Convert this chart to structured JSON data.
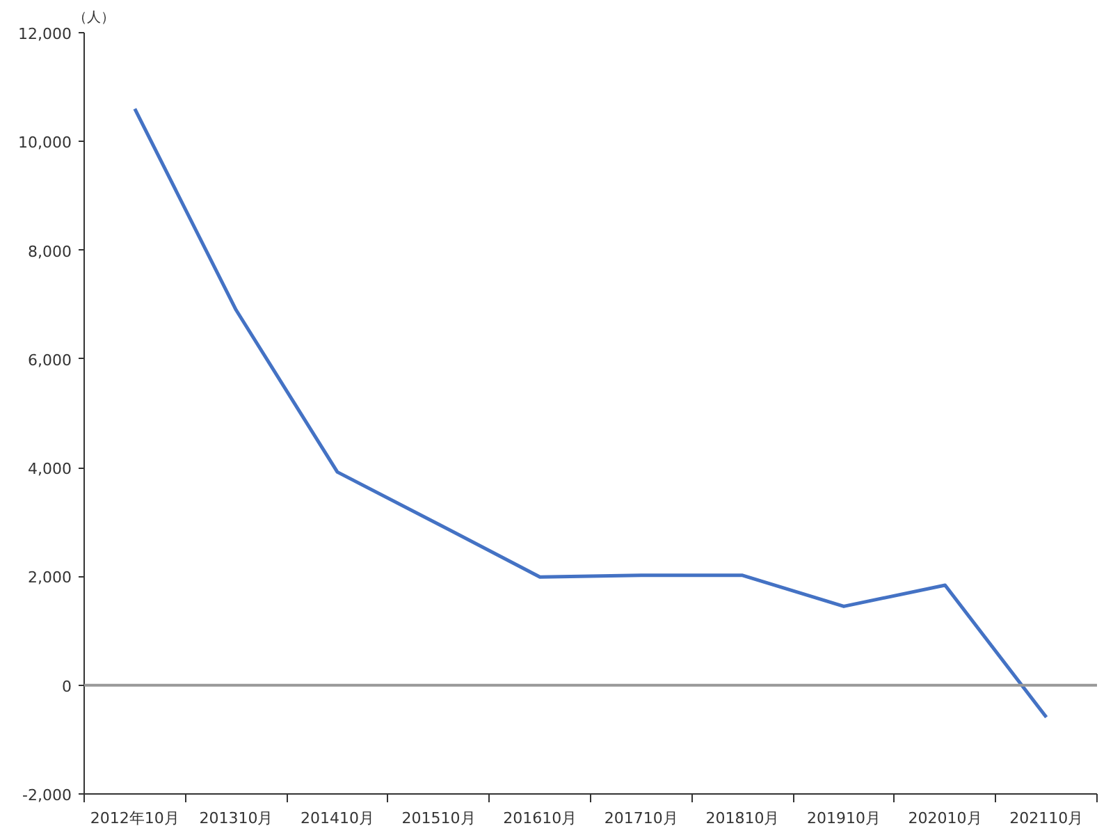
{
  "chart_data": {
    "type": "line",
    "ylabel": "（人）",
    "categories": [
      "2012年10月",
      "201310月",
      "201410月",
      "201510月",
      "201610月",
      "201710月",
      "201810月",
      "201910月",
      "202010月",
      "202110月"
    ],
    "series": [
      {
        "color": "#4472c4",
        "values": [
          10600,
          6900,
          3920,
          2960,
          1990,
          2020,
          2020,
          1450,
          1840,
          -590
        ]
      }
    ],
    "ylim": [
      -2000,
      12000
    ],
    "yticks": [
      {
        "value": -2000,
        "label": "-2,000"
      },
      0,
      {
        "value": 2000,
        "label": "2,000"
      },
      {
        "value": 4000,
        "label": "4,000"
      },
      {
        "value": 6000,
        "label": "6,000"
      },
      {
        "value": 8000,
        "label": "8,000"
      },
      {
        "value": 10000,
        "label": "10,000"
      },
      {
        "value": 12000,
        "label": "12,000"
      }
    ],
    "ref_lines": [
      {
        "axis": "y",
        "value": 0,
        "color": "#999999"
      }
    ],
    "grid": false,
    "marker": "none",
    "line_style": "solid"
  }
}
